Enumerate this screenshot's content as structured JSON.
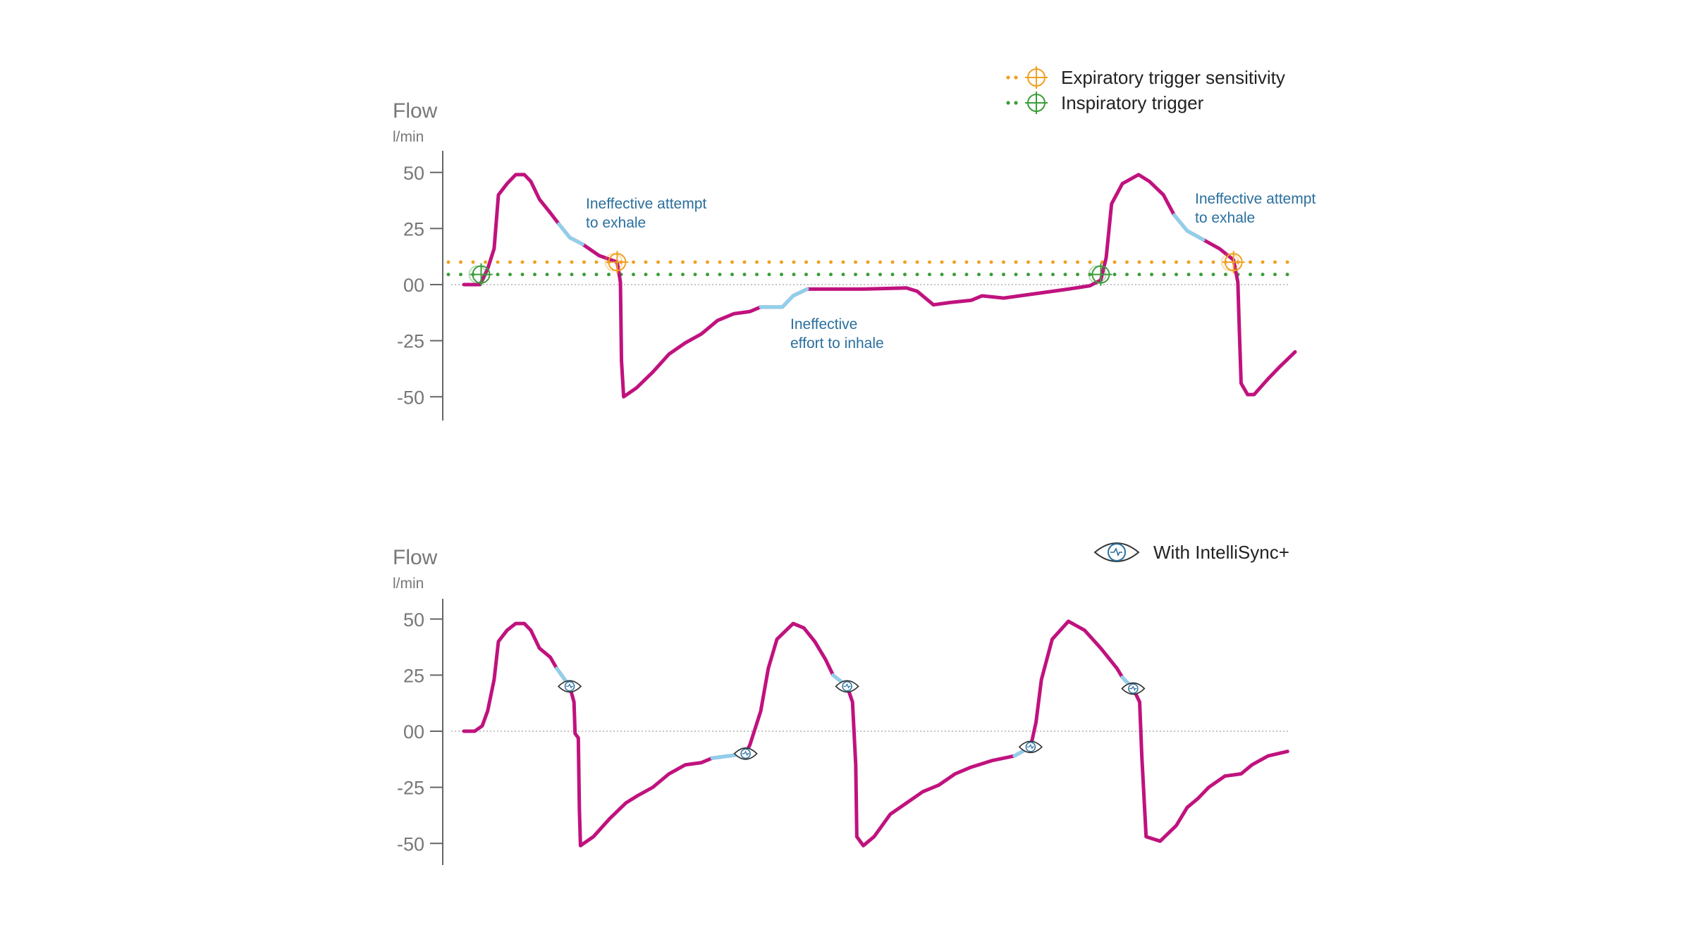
{
  "colors": {
    "flow_line": "#c0127e",
    "highlight": "#8fd0ea",
    "expiratory": "#f0a020",
    "inspiratory": "#3a9e3a",
    "annotation": "#2a6f9e",
    "axis_text": "#777777",
    "legend_text": "#222222",
    "zero_line": "#b0b0b0"
  },
  "chart_data": [
    {
      "type": "line",
      "ylabel": "Flow",
      "yunit": "l/min",
      "ylim": [
        -60,
        60
      ],
      "yticks": [
        50,
        25,
        0,
        -25,
        -50
      ],
      "ytick_labels": [
        "50",
        "25",
        "00",
        "-25",
        "-50"
      ],
      "grid": false,
      "zero_line": "dotted",
      "legend_position": "top-right",
      "legend": [
        {
          "label": "Expiratory trigger sensitivity",
          "style": "dotted",
          "color": "#f0a020",
          "icon": "crosshair-circle-icon"
        },
        {
          "label": "Inspiratory trigger",
          "style": "dotted",
          "color": "#3a9e3a",
          "icon": "crosshair-circle-icon"
        }
      ],
      "thresholds": {
        "expiratory": 10,
        "inspiratory": 4.5
      },
      "series": [
        {
          "x": [
            0,
            3,
            4.4,
            5.6,
            6.4,
            8,
            9.6,
            11.2,
            12.4,
            14,
            16,
            17.6,
            19.6,
            22,
            25,
            28.4,
            29,
            29.2,
            29.6,
            32,
            35,
            38,
            41,
            44,
            47,
            50,
            53,
            55,
            59,
            61,
            63.6,
            66,
            74,
            82,
            84,
            87,
            90,
            94,
            96,
            100,
            106,
            112,
            116,
            118,
            119,
            120,
            122,
            125,
            127,
            129.6,
            131.6,
            134,
            137,
            140,
            142.6,
            143.4,
            143.6,
            144,
            145.2,
            146.4,
            149,
            151,
            154
          ],
          "y": [
            0,
            0,
            7,
            16,
            40,
            45,
            49,
            49,
            46,
            38,
            32,
            27,
            21,
            18,
            13,
            10,
            1,
            -34,
            -50,
            -46,
            -39,
            -31,
            -26,
            -22,
            -16,
            -13,
            -12,
            -10,
            -10,
            -5,
            -2,
            -2,
            -2,
            -1.5,
            -3,
            -9,
            -8,
            -7,
            -5,
            -6,
            -4,
            -2,
            -0.5,
            2,
            12,
            36,
            45,
            49,
            46,
            40,
            31,
            24,
            20,
            16,
            11,
            1,
            -15,
            -44,
            -49,
            -49,
            -42,
            -37,
            -30
          ]
        }
      ],
      "highlighted_ranges": [
        [
          17.6,
          22
        ],
        [
          55,
          63.6
        ],
        [
          131.6,
          137
        ]
      ],
      "expiratory_trigger_points": [
        28.4,
        142.6
      ],
      "inspiratory_trigger_points": [
        3.2,
        118
      ],
      "annotations": [
        {
          "lines": [
            "Ineffective attempt",
            "to exhale"
          ]
        },
        {
          "lines": [
            "Ineffective",
            "effort to inhale"
          ]
        },
        {
          "lines": [
            "Ineffective attempt",
            "to exhale"
          ]
        }
      ]
    },
    {
      "type": "line",
      "ylabel": "Flow",
      "yunit": "l/min",
      "ylim": [
        -60,
        60
      ],
      "yticks": [
        50,
        25,
        0,
        -25,
        -50
      ],
      "ytick_labels": [
        "50",
        "25",
        "00",
        "-25",
        "-50"
      ],
      "grid": false,
      "zero_line": "dotted",
      "legend_position": "top-right",
      "legend": [
        {
          "label": "With IntelliSync+",
          "icon": "intellisync-eye-icon"
        }
      ],
      "series": [
        {
          "x": [
            0,
            2,
            3.4,
            4.4,
            5.6,
            6.4,
            8,
            9.6,
            11.2,
            12.4,
            14,
            16,
            17.2,
            19.6,
            20.4,
            20.6,
            21.2,
            21.4,
            21.6,
            24,
            27,
            30,
            32,
            35,
            38,
            41,
            44,
            46,
            52.2,
            53,
            55,
            56.4,
            58,
            61,
            63,
            65,
            67,
            68.4,
            71,
            72,
            72.6,
            72.8,
            74,
            76,
            79,
            82,
            85,
            88,
            91,
            94,
            98,
            102,
            105,
            106,
            107,
            109,
            112,
            115,
            118,
            121,
            122,
            124,
            125.2,
            125.6,
            126.4,
            129,
            132,
            134,
            136,
            138,
            141,
            144,
            146,
            149,
            152.6
          ],
          "y": [
            0,
            0,
            2.4,
            9,
            23,
            40,
            45,
            48,
            48,
            45,
            37,
            33,
            28,
            20,
            13,
            -1,
            -3,
            -35,
            -51,
            -47,
            -39,
            -32,
            -29,
            -25,
            -19,
            -15,
            -14,
            -12,
            -10,
            -6,
            9,
            28,
            41,
            48,
            46,
            40,
            32,
            25,
            20,
            13,
            -15,
            -47,
            -51,
            -47,
            -37,
            -32,
            -27,
            -24,
            -19,
            -16,
            -13,
            -11,
            -7,
            4,
            23,
            41,
            49,
            45,
            37,
            28,
            24,
            19,
            13,
            -11,
            -47,
            -49,
            -42,
            -34,
            -30,
            -25,
            -20,
            -19,
            -15,
            -11,
            -9
          ]
        }
      ],
      "highlighted_ranges": [
        [
          17.2,
          19.6
        ],
        [
          46,
          52.2
        ],
        [
          68.4,
          71
        ],
        [
          102,
          105
        ],
        [
          122,
          124
        ]
      ],
      "intellisync_points": [
        19.6,
        52.2,
        71,
        105,
        124
      ]
    }
  ]
}
